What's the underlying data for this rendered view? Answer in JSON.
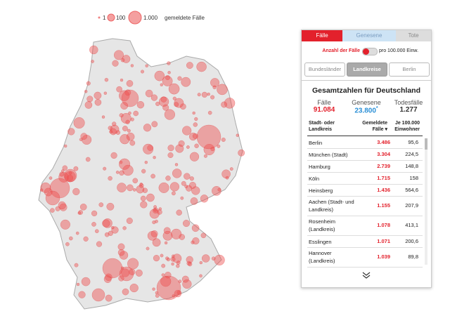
{
  "legend": {
    "items": [
      "1",
      "100",
      "1.000"
    ],
    "caption": "gemeldete Fälle"
  },
  "tabs": [
    "Fälle",
    "Genesene",
    "Tote"
  ],
  "toggle": {
    "left": "Anzahl der Fälle",
    "right": "pro 100.000 Einw."
  },
  "buttons": [
    "Bundesländer",
    "Landkreise",
    "Berlin"
  ],
  "summary": {
    "title": "Gesamtzahlen für Deutschland",
    "stats": [
      {
        "label": "Fälle",
        "value": "91.084"
      },
      {
        "label": "Genesene",
        "value": "23.800",
        "note": "*"
      },
      {
        "label": "Todesfälle",
        "value": "1.277"
      }
    ]
  },
  "table": {
    "headers": [
      "Stadt- oder Landkreis",
      "Gemeldete Fälle",
      "Je 100.000 Einwohner"
    ],
    "rows": [
      [
        "Berlin",
        "3.486",
        "95,6"
      ],
      [
        "München (Stadt)",
        "3.304",
        "224,5"
      ],
      [
        "Hamburg",
        "2.739",
        "148,8"
      ],
      [
        "Köln",
        "1.715",
        "158"
      ],
      [
        "Heinsberg",
        "1.436",
        "564,6"
      ],
      [
        "Aachen (Stadt- und Landkreis)",
        "1.155",
        "207,9"
      ],
      [
        "Rosenheim (Landkreis)",
        "1.078",
        "413,1"
      ],
      [
        "Esslingen",
        "1.071",
        "200,6"
      ],
      [
        "Hannover (Landkreis)",
        "1.039",
        "89,8"
      ]
    ]
  }
}
